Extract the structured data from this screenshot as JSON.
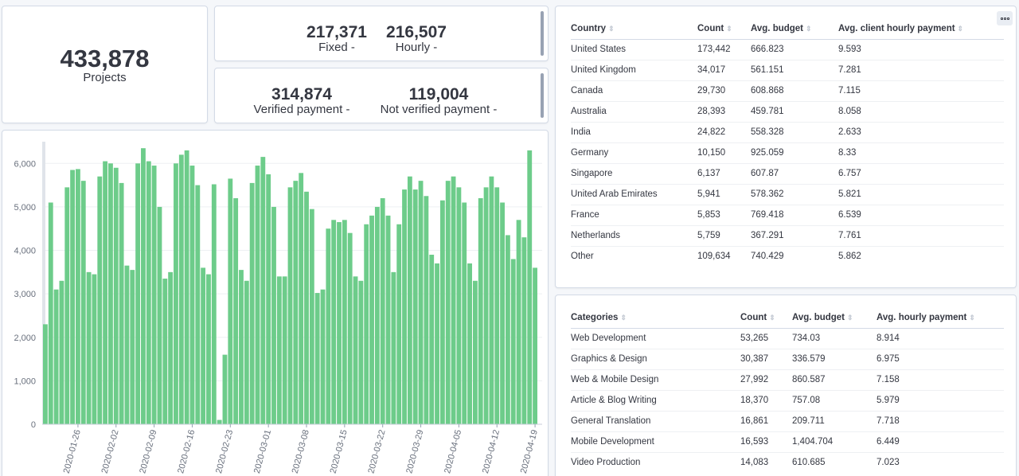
{
  "metrics": {
    "projects": {
      "value": "433,878",
      "label": "Projects"
    },
    "fixed": {
      "value": "217,371",
      "label": "Fixed -"
    },
    "hourly": {
      "value": "216,507",
      "label": "Hourly -"
    },
    "verified": {
      "value": "314,874",
      "label": "Verified payment -"
    },
    "not_verified": {
      "value": "119,004",
      "label": "Not verified payment -"
    }
  },
  "country_table": {
    "headers": [
      "Country",
      "Count",
      "Avg. budget",
      "Avg. client hourly payment"
    ],
    "rows": [
      [
        "United States",
        "173,442",
        "666.823",
        "9.593"
      ],
      [
        "United Kingdom",
        "34,017",
        "561.151",
        "7.281"
      ],
      [
        "Canada",
        "29,730",
        "608.868",
        "7.115"
      ],
      [
        "Australia",
        "28,393",
        "459.781",
        "8.058"
      ],
      [
        "India",
        "24,822",
        "558.328",
        "2.633"
      ],
      [
        "Germany",
        "10,150",
        "925.059",
        "8.33"
      ],
      [
        "Singapore",
        "6,137",
        "607.87",
        "6.757"
      ],
      [
        "United Arab Emirates",
        "5,941",
        "578.362",
        "5.821"
      ],
      [
        "France",
        "5,853",
        "769.418",
        "6.539"
      ],
      [
        "Netherlands",
        "5,759",
        "367.291",
        "7.761"
      ],
      [
        "Other",
        "109,634",
        "740.429",
        "5.862"
      ]
    ]
  },
  "category_table": {
    "headers": [
      "Categories",
      "Count",
      "Avg. budget",
      "Avg. hourly payment"
    ],
    "rows": [
      [
        "Web Development",
        "53,265",
        "734.03",
        "8.914"
      ],
      [
        "Graphics & Design",
        "30,387",
        "336.579",
        "6.975"
      ],
      [
        "Web & Mobile Design",
        "27,992",
        "860.587",
        "7.158"
      ],
      [
        "Article & Blog Writing",
        "18,370",
        "757.08",
        "5.979"
      ],
      [
        "General Translation",
        "16,861",
        "209.711",
        "7.718"
      ],
      [
        "Mobile Development",
        "16,593",
        "1,404.704",
        "6.449"
      ],
      [
        "Video Production",
        "14,083",
        "610.685",
        "7.023"
      ]
    ]
  },
  "chart_data": {
    "type": "bar",
    "color": "#6dcc8a",
    "ylim": [
      0,
      6500
    ],
    "yticks": [
      "0",
      "1,000",
      "2,000",
      "3,000",
      "4,000",
      "5,000",
      "6,000"
    ],
    "xticks": [
      "2020-01-26",
      "2020-02-02",
      "2020-02-09",
      "2020-02-16",
      "2020-02-23",
      "2020-03-01",
      "2020-03-08",
      "2020-03-15",
      "2020-03-22",
      "2020-03-29",
      "2020-04-05",
      "2020-04-12",
      "2020-04-19"
    ],
    "values": [
      2300,
      5100,
      3100,
      3300,
      5450,
      5850,
      5870,
      5600,
      3500,
      3450,
      5700,
      6050,
      6000,
      5900,
      5550,
      3650,
      3550,
      6000,
      6350,
      6050,
      5950,
      5000,
      3350,
      3500,
      6000,
      6200,
      6300,
      5950,
      5500,
      3600,
      3450,
      5520,
      100,
      1600,
      5650,
      5200,
      3550,
      3300,
      5550,
      5950,
      6150,
      5750,
      5000,
      3400,
      3400,
      5450,
      5600,
      5780,
      5350,
      4950,
      3020,
      3100,
      4500,
      4700,
      4650,
      4700,
      4400,
      3400,
      3300,
      4600,
      4800,
      5000,
      5200,
      4800,
      3500,
      4600,
      5400,
      5700,
      5400,
      5600,
      5250,
      3900,
      3700,
      5150,
      5600,
      5700,
      5450,
      5100,
      3700,
      3300,
      5200,
      5450,
      5700,
      5450,
      5100,
      4350,
      3800,
      4700,
      4300,
      6300,
      3600
    ]
  }
}
